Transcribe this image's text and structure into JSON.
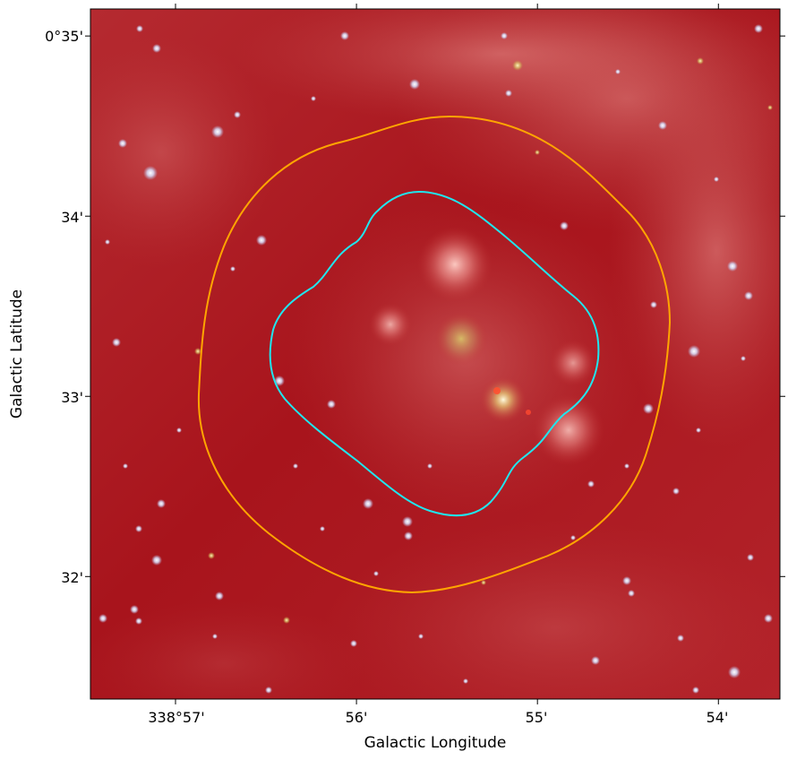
{
  "figure": {
    "xlabel": "Galactic Longitude",
    "ylabel": "Galactic Latitude",
    "x_ticks": [
      {
        "label": "338°57'",
        "value_arcmin": 57
      },
      {
        "label": "56'",
        "value_arcmin": 56
      },
      {
        "label": "55'",
        "value_arcmin": 55
      },
      {
        "label": "54'",
        "value_arcmin": 54
      }
    ],
    "y_ticks": [
      {
        "label": "0°35'",
        "value_arcmin": 35
      },
      {
        "label": "34'",
        "value_arcmin": 34
      },
      {
        "label": "33'",
        "value_arcmin": 33
      },
      {
        "label": "32'",
        "value_arcmin": 32
      }
    ],
    "x_range_arcmin": [
      57.47,
      53.66
    ],
    "y_range_arcmin": [
      31.32,
      35.15
    ],
    "colors": {
      "background": "#a8141c",
      "nebula": "#e38686",
      "outer_contour": "#ffa500",
      "inner_contour": "#1fe6ef",
      "star": "#e8eefc"
    }
  }
}
